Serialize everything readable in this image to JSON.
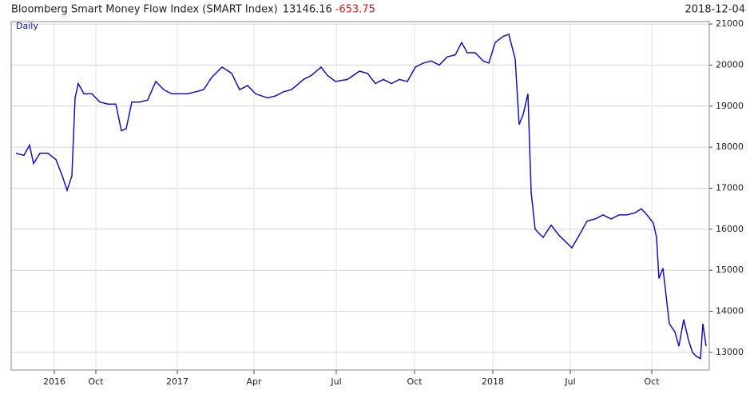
{
  "chart_data": {
    "type": "line",
    "title": "Bloomberg Smart Money Flow Index (SMART Index)",
    "last_value": 13146.16,
    "change": -653.75,
    "change_color": "#e8141b",
    "date": "2018-12-04",
    "period": "Daily",
    "x": [
      20,
      30,
      37,
      42,
      50,
      60,
      70,
      78,
      84,
      90,
      94,
      98,
      105,
      115,
      125,
      135,
      145,
      152,
      158,
      165,
      175,
      185,
      195,
      205,
      215,
      225,
      235,
      245,
      255,
      265,
      278,
      290,
      300,
      310,
      320,
      335,
      345,
      355,
      365,
      380,
      390,
      402,
      410,
      420,
      435,
      450,
      460,
      470,
      480,
      490,
      500,
      510,
      520,
      530,
      540,
      550,
      560,
      570,
      578,
      585,
      595,
      605,
      612,
      620,
      630,
      637,
      645,
      650,
      655,
      661,
      665,
      670,
      680,
      690,
      700,
      708,
      716,
      725,
      735,
      745,
      755,
      765,
      775,
      785,
      795,
      803,
      810,
      818,
      822,
      825,
      830,
      838,
      845,
      850,
      856,
      862,
      867,
      872,
      877,
      880,
      884
    ],
    "series": [
      {
        "name": "SMART Index",
        "color": "#1010c8",
        "values": [
          17850,
          17800,
          18050,
          17600,
          17850,
          17850,
          17700,
          17300,
          16950,
          17300,
          19200,
          19550,
          19300,
          19300,
          19100,
          19050,
          19050,
          18400,
          18450,
          19100,
          19100,
          19150,
          19600,
          19400,
          19300,
          19300,
          19300,
          19350,
          19400,
          19700,
          19950,
          19800,
          19400,
          19500,
          19300,
          19200,
          19250,
          19350,
          19400,
          19650,
          19750,
          19950,
          19750,
          19600,
          19650,
          19850,
          19800,
          19550,
          19650,
          19550,
          19650,
          19600,
          19950,
          20050,
          20100,
          20000,
          20200,
          20250,
          20550,
          20300,
          20300,
          20100,
          20050,
          20550,
          20700,
          20750,
          20150,
          18550,
          18800,
          19300,
          16900,
          16000,
          15800,
          16100,
          15850,
          15700,
          15550,
          15850,
          16200,
          16250,
          16350,
          16250,
          16350,
          16350,
          16400,
          16500,
          16350,
          16150,
          15800,
          14800,
          15050,
          13700,
          13500,
          13150,
          13800,
          13300,
          13000,
          12900,
          12850,
          13700,
          13150
        ]
      }
    ],
    "xlim": [
      14,
      888
    ],
    "xticks": [
      {
        "value": 68,
        "label": "2016"
      },
      {
        "value": 120,
        "label": "Oct"
      },
      {
        "value": 222,
        "label": "2017"
      },
      {
        "value": 318,
        "label": "Apr"
      },
      {
        "value": 421,
        "label": "Jul"
      },
      {
        "value": 519,
        "label": "Oct"
      },
      {
        "value": 617,
        "label": "2018"
      },
      {
        "value": 714,
        "label": "Jul"
      },
      {
        "value": 816,
        "label": "Oct"
      }
    ],
    "ylim": [
      12570,
      21060
    ],
    "yticks": [
      13000,
      14000,
      15000,
      16000,
      17000,
      18000,
      19000,
      20000,
      21000
    ],
    "grid": true
  }
}
